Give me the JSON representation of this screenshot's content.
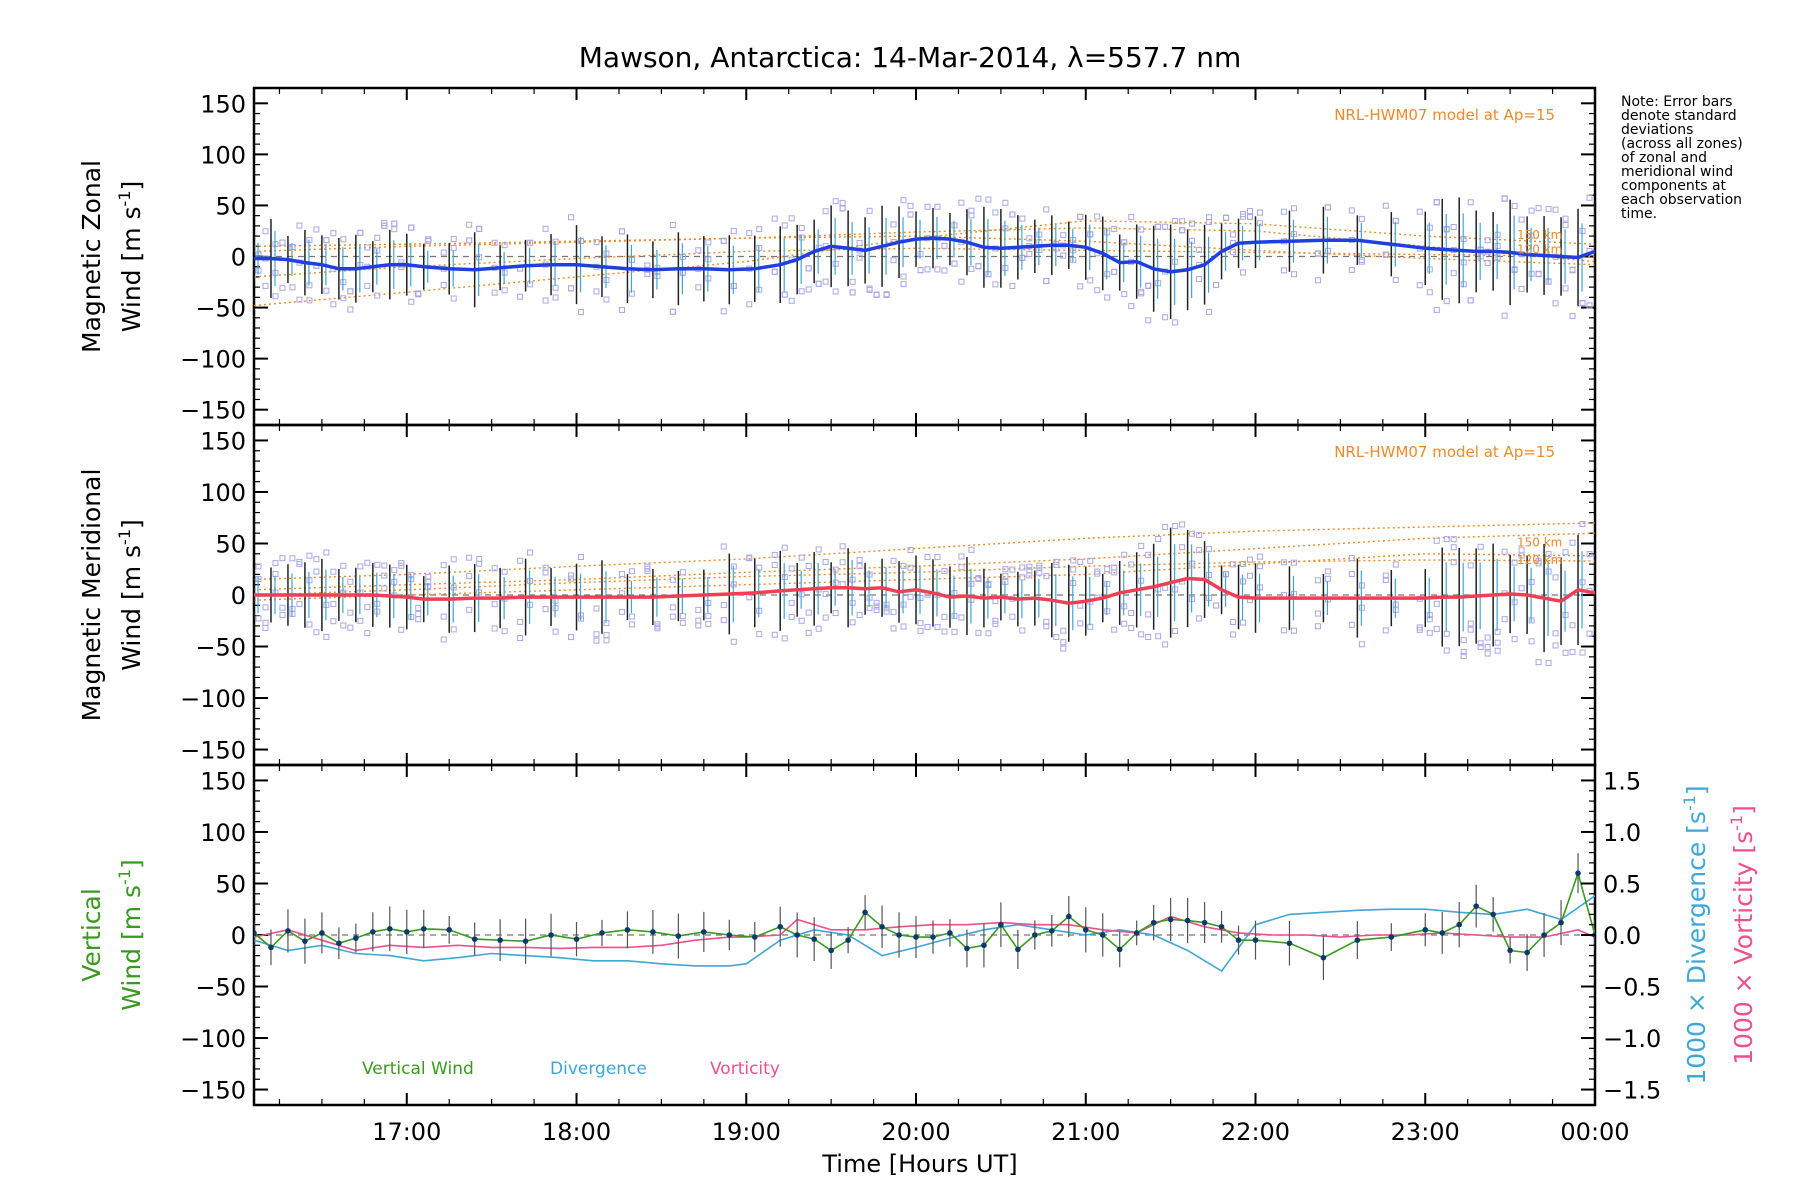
{
  "chart_data": {
    "type": "line",
    "title": "Mawson, Antarctica: 14-Mar-2014, λ=557.7 nm",
    "xlabel": "Time [Hours UT]",
    "x_range": [
      16.1,
      24.0
    ],
    "x_ticks": [
      {
        "x": 17,
        "label": "17:00"
      },
      {
        "x": 18,
        "label": "18:00"
      },
      {
        "x": 19,
        "label": "19:00"
      },
      {
        "x": 20,
        "label": "20:00"
      },
      {
        "x": 21,
        "label": "21:00"
      },
      {
        "x": 22,
        "label": "22:00"
      },
      {
        "x": 23,
        "label": "23:00"
      },
      {
        "x": 24,
        "label": "00:00"
      }
    ],
    "y_ticks": [
      150,
      100,
      50,
      0,
      -50,
      -100,
      -150
    ],
    "y_tick_labels": [
      "150",
      "100",
      "50",
      "0",
      "−50",
      "−100",
      "−150"
    ],
    "note": [
      "Note: Error bars",
      "denote standard",
      "deviations",
      "(across all zones)",
      "of zonal and",
      "meridional wind",
      "components at",
      "each observation",
      "time."
    ],
    "colors": {
      "zonal": "#1f3fe0",
      "meridional": "#ee3f55",
      "vertical": "#3a9a20",
      "divergence": "#3fa6d8",
      "vorticity": "#ee4f8f",
      "model": "#f08a28",
      "scatter": "#a8a8e8",
      "errorbar": "#222222"
    },
    "panels": [
      {
        "ylabel_line1": "Magnetic Zonal",
        "ylabel_line2_text": "Wind [m s",
        "ylabel_sup": "-1",
        "ylabel_close": "]",
        "ylim": [
          -165,
          165
        ],
        "model_label": "NRL-HWM07 model at Ap=15",
        "model_heights": [
          "150 km",
          "120 km"
        ],
        "series": {
          "name": "Magnetic Zonal Wind",
          "x": [
            16.1,
            16.2,
            16.3,
            16.4,
            16.5,
            16.6,
            16.7,
            16.8,
            16.9,
            17.0,
            17.1,
            17.25,
            17.4,
            17.55,
            17.7,
            17.85,
            18.0,
            18.15,
            18.3,
            18.45,
            18.6,
            18.75,
            18.9,
            19.05,
            19.2,
            19.3,
            19.4,
            19.5,
            19.6,
            19.7,
            19.8,
            19.9,
            20.0,
            20.1,
            20.2,
            20.3,
            20.4,
            20.5,
            20.6,
            20.7,
            20.8,
            20.9,
            21.0,
            21.1,
            21.2,
            21.3,
            21.4,
            21.5,
            21.6,
            21.7,
            21.8,
            21.9,
            22.0,
            22.2,
            22.4,
            22.6,
            22.8,
            23.0,
            23.1,
            23.2,
            23.3,
            23.4,
            23.5,
            23.6,
            23.7,
            23.8,
            23.9,
            24.0
          ],
          "values": [
            -2,
            -2,
            -3,
            -6,
            -8,
            -12,
            -12,
            -10,
            -8,
            -8,
            -10,
            -12,
            -13,
            -11,
            -9,
            -8,
            -8,
            -10,
            -12,
            -13,
            -12,
            -12,
            -13,
            -12,
            -8,
            -3,
            5,
            10,
            8,
            6,
            10,
            14,
            17,
            18,
            17,
            14,
            9,
            8,
            9,
            10,
            11,
            11,
            9,
            3,
            -6,
            -5,
            -12,
            -15,
            -13,
            -8,
            5,
            13,
            14,
            15,
            16,
            16,
            12,
            8,
            7,
            6,
            5,
            5,
            4,
            2,
            1,
            0,
            -1,
            5
          ]
        },
        "model_curves": [
          {
            "x": [
              16.1,
              17,
              18,
              19,
              20,
              21,
              22,
              23,
              24
            ],
            "values": [
              -48,
              -35,
              -20,
              -5,
              18,
              35,
              32,
              20,
              12
            ]
          },
          {
            "x": [
              16.1,
              17,
              18,
              19,
              20,
              21,
              22,
              23,
              24
            ],
            "values": [
              10,
              12,
              15,
              18,
              20,
              15,
              6,
              -2,
              -8
            ]
          },
          {
            "x": [
              16.1,
              17,
              18,
              19,
              20,
              21,
              22,
              23,
              24
            ],
            "values": [
              -20,
              -10,
              -2,
              5,
              8,
              6,
              4,
              2,
              0
            ]
          },
          {
            "x": [
              16.1,
              17,
              18,
              19,
              20,
              21,
              22,
              23,
              24
            ],
            "values": [
              5,
              10,
              14,
              18,
              24,
              28,
              25,
              10,
              -5
            ]
          }
        ]
      },
      {
        "ylabel_line1": "Magnetic Meridional",
        "ylabel_line2_text": "Wind [m s",
        "ylabel_sup": "-1",
        "ylabel_close": "]",
        "ylim": [
          -165,
          165
        ],
        "model_label": "NRL-HWM07 model at Ap=15",
        "model_heights": [
          "150 km",
          "120 km"
        ],
        "series": {
          "name": "Magnetic Meridional Wind",
          "x": [
            16.1,
            16.2,
            16.3,
            16.4,
            16.5,
            16.6,
            16.7,
            16.8,
            16.9,
            17.0,
            17.1,
            17.25,
            17.4,
            17.55,
            17.7,
            17.85,
            18.0,
            18.15,
            18.3,
            18.45,
            18.6,
            18.75,
            18.9,
            19.05,
            19.2,
            19.3,
            19.4,
            19.5,
            19.6,
            19.7,
            19.8,
            19.9,
            20.0,
            20.1,
            20.2,
            20.3,
            20.4,
            20.5,
            20.6,
            20.7,
            20.8,
            20.9,
            21.0,
            21.1,
            21.2,
            21.3,
            21.4,
            21.5,
            21.6,
            21.7,
            21.8,
            21.9,
            22.0,
            22.2,
            22.4,
            22.6,
            22.8,
            23.0,
            23.1,
            23.2,
            23.3,
            23.4,
            23.5,
            23.6,
            23.7,
            23.8,
            23.9,
            24.0
          ],
          "values": [
            0,
            0,
            0,
            0,
            0,
            0,
            0,
            0,
            -1,
            -2,
            -4,
            -4,
            -3,
            -3,
            -2,
            -2,
            -2,
            -2,
            -2,
            -2,
            -1,
            0,
            1,
            2,
            4,
            5,
            6,
            7,
            7,
            6,
            7,
            3,
            5,
            2,
            -2,
            -1,
            -3,
            -2,
            -4,
            -3,
            -5,
            -8,
            -6,
            -3,
            2,
            5,
            8,
            12,
            16,
            15,
            5,
            -2,
            -3,
            -3,
            -3,
            -3,
            -3,
            -3,
            -2,
            -2,
            -1,
            0,
            1,
            0,
            -3,
            -6,
            5,
            2
          ]
        },
        "model_curves": [
          {
            "x": [
              16.1,
              17,
              18,
              19,
              20,
              21,
              22,
              23,
              24
            ],
            "values": [
              15,
              20,
              28,
              35,
              45,
              55,
              62,
              66,
              70
            ]
          },
          {
            "x": [
              16.1,
              17,
              18,
              19,
              20,
              21,
              22,
              23,
              24
            ],
            "values": [
              5,
              10,
              15,
              22,
              28,
              35,
              45,
              55,
              60
            ]
          },
          {
            "x": [
              16.1,
              17,
              18,
              19,
              20,
              21,
              22,
              23,
              24
            ],
            "values": [
              -5,
              0,
              5,
              10,
              15,
              20,
              30,
              40,
              38
            ]
          },
          {
            "x": [
              16.1,
              17,
              18,
              19,
              20,
              21,
              22,
              23,
              24
            ],
            "values": [
              0,
              5,
              12,
              18,
              22,
              28,
              32,
              34,
              33
            ]
          }
        ]
      },
      {
        "ylabel_line1": "Vertical",
        "ylabel_line2_text": "Wind [m s",
        "ylabel_sup": "-1",
        "ylabel_close": "]",
        "ylim": [
          -165,
          165
        ],
        "right_axis": {
          "ticks": [
            1.5,
            1.0,
            0.5,
            0.0,
            -0.5,
            -1.0,
            -1.5
          ],
          "tick_labels": [
            "1.5",
            "1.0",
            "0.5",
            "0.0",
            "−0.5",
            "−1.0",
            "−1.5"
          ],
          "label1_text": "1000 × Divergence [s",
          "label1_sup": "-1",
          "label1_close": "]",
          "label2_text": "1000 × Vorticity [s",
          "label2_sup": "-1",
          "label2_close": "]",
          "ylim": [
            -1.65,
            1.65
          ]
        },
        "legend": [
          "Vertical Wind",
          "Divergence",
          "Vorticity"
        ],
        "series_vertical": {
          "name": "Vertical Wind",
          "x": [
            16.1,
            16.2,
            16.3,
            16.4,
            16.5,
            16.6,
            16.7,
            16.8,
            16.9,
            17.0,
            17.1,
            17.25,
            17.4,
            17.55,
            17.7,
            17.85,
            18.0,
            18.15,
            18.3,
            18.45,
            18.6,
            18.75,
            18.9,
            19.05,
            19.2,
            19.3,
            19.4,
            19.5,
            19.6,
            19.7,
            19.8,
            19.9,
            20.0,
            20.1,
            20.2,
            20.3,
            20.4,
            20.5,
            20.6,
            20.7,
            20.8,
            20.9,
            21.0,
            21.1,
            21.2,
            21.3,
            21.4,
            21.5,
            21.6,
            21.7,
            21.8,
            21.9,
            22.0,
            22.2,
            22.4,
            22.6,
            22.8,
            23.0,
            23.1,
            23.2,
            23.3,
            23.4,
            23.5,
            23.6,
            23.7,
            23.8,
            23.9,
            24.0
          ],
          "values": [
            2,
            -12,
            4,
            -6,
            2,
            -8,
            -3,
            3,
            6,
            3,
            6,
            5,
            -4,
            -5,
            -6,
            0,
            -4,
            2,
            5,
            3,
            -1,
            3,
            0,
            -2,
            8,
            0,
            -4,
            -15,
            -5,
            22,
            8,
            0,
            -2,
            -2,
            2,
            -13,
            -10,
            10,
            -14,
            0,
            4,
            18,
            5,
            0,
            -14,
            2,
            12,
            15,
            14,
            12,
            8,
            -5,
            -5,
            -8,
            -22,
            -5,
            -2,
            5,
            2,
            10,
            28,
            20,
            -15,
            -17,
            0,
            12,
            60,
            0
          ]
        },
        "series_divergence": {
          "name": "Divergence",
          "x": [
            16.1,
            16.3,
            16.5,
            16.7,
            16.9,
            17.1,
            17.3,
            17.5,
            17.7,
            17.9,
            18.1,
            18.3,
            18.5,
            18.7,
            18.9,
            19.0,
            19.2,
            19.4,
            19.6,
            19.8,
            20.0,
            20.2,
            20.4,
            20.6,
            20.8,
            21.0,
            21.2,
            21.4,
            21.6,
            21.8,
            22.0,
            22.2,
            22.4,
            22.6,
            22.8,
            23.0,
            23.2,
            23.4,
            23.6,
            23.8,
            24.0
          ],
          "values": [
            -0.05,
            -0.15,
            -0.1,
            -0.18,
            -0.2,
            -0.25,
            -0.22,
            -0.18,
            -0.2,
            -0.22,
            -0.25,
            -0.25,
            -0.28,
            -0.3,
            -0.3,
            -0.28,
            -0.05,
            0.05,
            0.0,
            -0.2,
            -0.12,
            -0.03,
            0.05,
            0.1,
            0.05,
            0.0,
            0.05,
            0.0,
            -0.15,
            -0.35,
            0.1,
            0.2,
            0.22,
            0.24,
            0.25,
            0.25,
            0.22,
            0.2,
            0.25,
            0.15,
            0.38
          ]
        },
        "series_vorticity": {
          "name": "Vorticity",
          "x": [
            16.1,
            16.3,
            16.5,
            16.7,
            16.9,
            17.1,
            17.3,
            17.5,
            17.7,
            17.9,
            18.1,
            18.3,
            18.5,
            18.7,
            18.9,
            19.0,
            19.2,
            19.3,
            19.5,
            19.7,
            19.9,
            20.1,
            20.3,
            20.5,
            20.7,
            20.9,
            21.1,
            21.3,
            21.5,
            21.7,
            21.9,
            22.1,
            22.3,
            22.5,
            22.7,
            22.9,
            23.1,
            23.3,
            23.5,
            23.7,
            23.9,
            24.0
          ],
          "values": [
            -0.02,
            0.05,
            -0.05,
            -0.15,
            -0.1,
            -0.12,
            -0.1,
            -0.12,
            -0.12,
            -0.13,
            -0.12,
            -0.12,
            -0.1,
            -0.05,
            -0.02,
            -0.02,
            0.0,
            0.15,
            0.05,
            0.05,
            0.08,
            0.1,
            0.1,
            0.12,
            0.1,
            0.1,
            0.05,
            0.02,
            0.18,
            0.08,
            0.02,
            0.0,
            0.0,
            -0.02,
            0.0,
            0.0,
            0.02,
            0.0,
            -0.02,
            -0.02,
            0.05,
            -0.02
          ]
        }
      }
    ]
  }
}
